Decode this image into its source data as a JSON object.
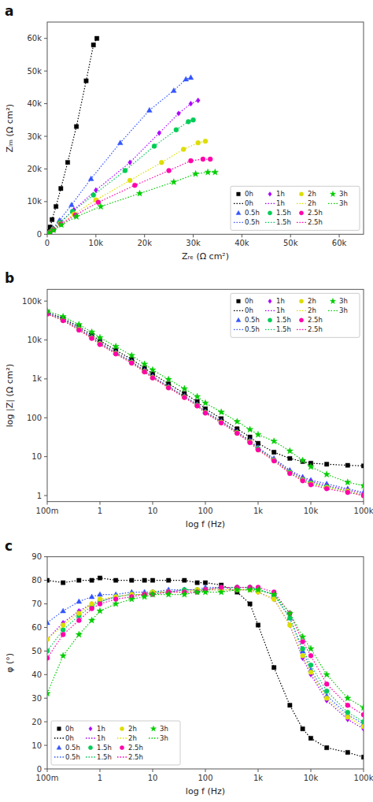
{
  "chart_data": [
    {
      "type": "line",
      "title": "a",
      "x_label": "Zᵣₑ (Ω cm²)",
      "y_label": "Zᵢₘ (Ω cm²)",
      "xlim": [
        0,
        65000
      ],
      "ylim": [
        0,
        65000
      ],
      "xticks": [
        0,
        {
          "value": 10000,
          "label": "10k"
        },
        {
          "value": 20000,
          "label": "20k"
        },
        {
          "value": 30000,
          "label": "30k"
        },
        {
          "value": 40000,
          "label": "40k"
        },
        {
          "value": 50000,
          "label": "50k"
        },
        {
          "value": 60000,
          "label": "60k"
        }
      ],
      "yticks": [
        0,
        {
          "value": 10000,
          "label": "10k"
        },
        {
          "value": 20000,
          "label": "20k"
        },
        {
          "value": 30000,
          "label": "30k"
        },
        {
          "value": 40000,
          "label": "40k"
        },
        {
          "value": 50000,
          "label": "50k"
        },
        {
          "value": 60000,
          "label": "60k"
        }
      ],
      "grid": false,
      "legend": "lower right",
      "series": [
        {
          "name": "0h",
          "color": "#000000",
          "marker": "square",
          "line_style": "dotted",
          "x": [
            100,
            300,
            600,
            1000,
            1800,
            2800,
            4200,
            6000,
            8000,
            9500,
            10200
          ],
          "values": [
            200,
            800,
            2200,
            4500,
            8500,
            14000,
            22000,
            33000,
            47000,
            58000,
            60000
          ]
        },
        {
          "name": "0.5h",
          "color": "#3355FF",
          "marker": "triangle",
          "line_style": "dotted",
          "x": [
            150,
            500,
            1200,
            2500,
            5000,
            9000,
            15000,
            21000,
            26000,
            28500,
            29500
          ],
          "values": [
            150,
            600,
            1800,
            4200,
            9000,
            17000,
            28000,
            38000,
            44000,
            47500,
            48000
          ]
        },
        {
          "name": "1h",
          "color": "#AA00FF",
          "marker": "diamond",
          "line_style": "dotted",
          "x": [
            150,
            500,
            1300,
            2800,
            5500,
            10000,
            17000,
            23000,
            27000,
            29500,
            31000
          ],
          "values": [
            150,
            600,
            1700,
            3800,
            7500,
            13500,
            22000,
            31000,
            37000,
            40000,
            41000
          ]
        },
        {
          "name": "1.5h",
          "color": "#00CC55",
          "marker": "circle",
          "line_style": "dotted",
          "x": [
            150,
            500,
            1200,
            2600,
            5200,
            9500,
            16000,
            22000,
            26500,
            29000,
            30000
          ],
          "values": [
            150,
            550,
            1600,
            3600,
            7000,
            12000,
            19500,
            27000,
            32000,
            34500,
            35000
          ]
        },
        {
          "name": "2h",
          "color": "#DDDD00",
          "marker": "circle",
          "line_style": "dotted",
          "x": [
            150,
            500,
            1200,
            2700,
            5500,
            10000,
            17000,
            23500,
            28000,
            31000,
            32500
          ],
          "values": [
            150,
            500,
            1400,
            3200,
            6200,
            10500,
            16500,
            22000,
            26000,
            28000,
            28500
          ]
        },
        {
          "name": "2.5h",
          "color": "#FF00AA",
          "marker": "circle",
          "line_style": "dotted",
          "x": [
            150,
            500,
            1300,
            2800,
            5800,
            10500,
            18000,
            25000,
            29500,
            32000,
            33500
          ],
          "values": [
            150,
            500,
            1400,
            3100,
            5900,
            9800,
            15000,
            19500,
            22500,
            23000,
            23000
          ]
        },
        {
          "name": "3h",
          "color": "#00CC00",
          "marker": "star",
          "line_style": "dotted",
          "x": [
            150,
            500,
            1300,
            2900,
            6000,
            11000,
            19000,
            26000,
            30500,
            33000,
            34500
          ],
          "values": [
            150,
            500,
            1300,
            2900,
            5400,
            8500,
            12500,
            16000,
            18500,
            19000,
            19000
          ]
        }
      ]
    },
    {
      "type": "line",
      "title": "b",
      "x_label": "log f (Hz)",
      "y_label": "log |Z| (Ω cm²)",
      "log": true,
      "xlim": [
        0.1,
        100000
      ],
      "ylim": [
        0.7,
        200000
      ],
      "xticks": [
        {
          "value": 0.1,
          "label": "100m"
        },
        1,
        10,
        100,
        {
          "value": 1000,
          "label": "1k"
        },
        {
          "value": 10000,
          "label": "10k"
        },
        {
          "value": 100000,
          "label": "100k"
        }
      ],
      "yticks": [
        1,
        10,
        100,
        {
          "value": 1000,
          "label": "1k"
        },
        {
          "value": 10000,
          "label": "10k"
        },
        {
          "value": 100000,
          "label": "100k"
        }
      ],
      "grid": false,
      "legend": "upper right",
      "x": [
        0.1,
        0.2,
        0.4,
        0.7,
        1,
        2,
        4,
        7,
        10,
        20,
        40,
        70,
        100,
        200,
        400,
        700,
        1000,
        2000,
        4000,
        7000,
        10000,
        20000,
        50000,
        100000
      ],
      "series": [
        {
          "name": "0h",
          "color": "#000000",
          "marker": "square",
          "line_style": "dotted",
          "values": [
            52000,
            36000,
            22000,
            13500,
            9500,
            5500,
            3200,
            1900,
            1350,
            750,
            420,
            260,
            170,
            95,
            52,
            32,
            22,
            13,
            9,
            7.5,
            6.8,
            6.4,
            6.0,
            5.8
          ]
        },
        {
          "name": "0.5h",
          "color": "#3355FF",
          "marker": "triangle",
          "line_style": "dotted",
          "values": [
            50000,
            34000,
            20000,
            12000,
            8500,
            4800,
            2800,
            1650,
            1150,
            640,
            360,
            220,
            145,
            82,
            44,
            26,
            17,
            9,
            4.5,
            3.0,
            2.5,
            2.0,
            1.5,
            1.2
          ]
        },
        {
          "name": "1h",
          "color": "#AA00FF",
          "marker": "diamond",
          "line_style": "dotted",
          "values": [
            49000,
            33000,
            19500,
            11800,
            8300,
            4700,
            2700,
            1600,
            1120,
            620,
            350,
            215,
            140,
            79,
            43,
            25,
            16,
            8.5,
            4.2,
            2.8,
            2.3,
            1.8,
            1.4,
            1.1
          ]
        },
        {
          "name": "1.5h",
          "color": "#00CC55",
          "marker": "circle",
          "line_style": "dotted",
          "values": [
            48000,
            32500,
            19000,
            11500,
            8100,
            4600,
            2650,
            1570,
            1100,
            610,
            345,
            210,
            138,
            77,
            42,
            24,
            16,
            8.2,
            4.0,
            2.6,
            2.1,
            1.7,
            1.3,
            1.0
          ]
        },
        {
          "name": "2h",
          "color": "#DDDD00",
          "marker": "circle",
          "line_style": "dotted",
          "values": [
            47000,
            32000,
            18500,
            11200,
            7900,
            4500,
            2600,
            1540,
            1080,
            600,
            338,
            205,
            135,
            76,
            41,
            24,
            15,
            8.0,
            3.8,
            2.5,
            2.0,
            1.6,
            1.3,
            1.0
          ]
        },
        {
          "name": "2.5h",
          "color": "#FF00AA",
          "marker": "circle",
          "line_style": "dotted",
          "values": [
            46500,
            31500,
            18000,
            11000,
            7700,
            4400,
            2550,
            1510,
            1060,
            590,
            332,
            202,
            132,
            74,
            40,
            23,
            15,
            7.8,
            3.7,
            2.4,
            1.9,
            1.5,
            1.2,
            1.0
          ]
        },
        {
          "name": "3h",
          "color": "#00CC00",
          "marker": "star",
          "line_style": "dotted",
          "values": [
            56000,
            40000,
            25000,
            16000,
            11500,
            6800,
            4000,
            2400,
            1700,
            970,
            560,
            350,
            240,
            140,
            80,
            50,
            37,
            25,
            14,
            8,
            5.5,
            3.5,
            2.2,
            1.8
          ]
        }
      ]
    },
    {
      "type": "line",
      "title": "c",
      "x_label": "log f (Hz)",
      "y_label": "φ (°)",
      "log": "x",
      "xlim": [
        0.1,
        100000
      ],
      "ylim": [
        0,
        90
      ],
      "xticks": [
        {
          "value": 0.1,
          "label": "100m"
        },
        1,
        10,
        100,
        {
          "value": 1000,
          "label": "1k"
        },
        {
          "value": 10000,
          "label": "10k"
        },
        {
          "value": 100000,
          "label": "100k"
        }
      ],
      "yticks": [
        0,
        10,
        20,
        30,
        40,
        50,
        60,
        70,
        80,
        90
      ],
      "grid": false,
      "legend": "lower left",
      "x": [
        0.1,
        0.2,
        0.4,
        0.7,
        1,
        2,
        4,
        7,
        10,
        20,
        40,
        70,
        100,
        200,
        400,
        700,
        1000,
        2000,
        4000,
        7000,
        10000,
        20000,
        50000,
        100000
      ],
      "series": [
        {
          "name": "0h",
          "color": "#000000",
          "marker": "square",
          "line_style": "dotted",
          "values": [
            80,
            79,
            80,
            80,
            81,
            80,
            80,
            80,
            80,
            80,
            80,
            79,
            79,
            78,
            75,
            70,
            61,
            43,
            27,
            17,
            13,
            9,
            7,
            5
          ]
        },
        {
          "name": "0.5h",
          "color": "#3355FF",
          "marker": "triangle",
          "line_style": "dotted",
          "values": [
            62,
            67,
            71,
            73,
            74,
            74,
            75,
            75,
            75,
            76,
            76,
            76,
            77,
            77,
            77,
            77,
            76,
            74,
            64,
            50,
            42,
            31,
            23,
            19
          ]
        },
        {
          "name": "1h",
          "color": "#AA00FF",
          "marker": "diamond",
          "line_style": "dotted",
          "values": [
            55,
            62,
            67,
            70,
            71,
            73,
            74,
            74,
            75,
            75,
            76,
            76,
            76,
            76,
            76,
            76,
            75,
            72,
            61,
            47,
            40,
            29,
            21,
            17
          ]
        },
        {
          "name": "1.5h",
          "color": "#00CC55",
          "marker": "circle",
          "line_style": "dotted",
          "values": [
            50,
            59,
            65,
            69,
            71,
            73,
            74,
            74,
            75,
            75,
            76,
            76,
            76,
            77,
            77,
            77,
            76,
            74,
            64,
            51,
            44,
            33,
            24,
            20
          ]
        },
        {
          "name": "2h",
          "color": "#DDDD00",
          "marker": "circle",
          "line_style": "dotted",
          "values": [
            55,
            61,
            66,
            70,
            72,
            73,
            74,
            74,
            75,
            75,
            75,
            76,
            76,
            76,
            76,
            76,
            75,
            72,
            61,
            48,
            41,
            30,
            22,
            18
          ]
        },
        {
          "name": "2.5h",
          "color": "#FF00AA",
          "marker": "circle",
          "line_style": "dotted",
          "values": [
            47,
            57,
            63,
            68,
            70,
            72,
            73,
            74,
            74,
            75,
            75,
            75,
            76,
            77,
            77,
            77,
            77,
            75,
            66,
            54,
            48,
            36,
            27,
            23
          ]
        },
        {
          "name": "3h",
          "color": "#00CC00",
          "marker": "star",
          "line_style": "dotted",
          "values": [
            32,
            48,
            57,
            63,
            67,
            70,
            72,
            73,
            74,
            74,
            74,
            75,
            75,
            75,
            76,
            76,
            76,
            74,
            66,
            56,
            51,
            40,
            30,
            26
          ]
        }
      ]
    }
  ]
}
